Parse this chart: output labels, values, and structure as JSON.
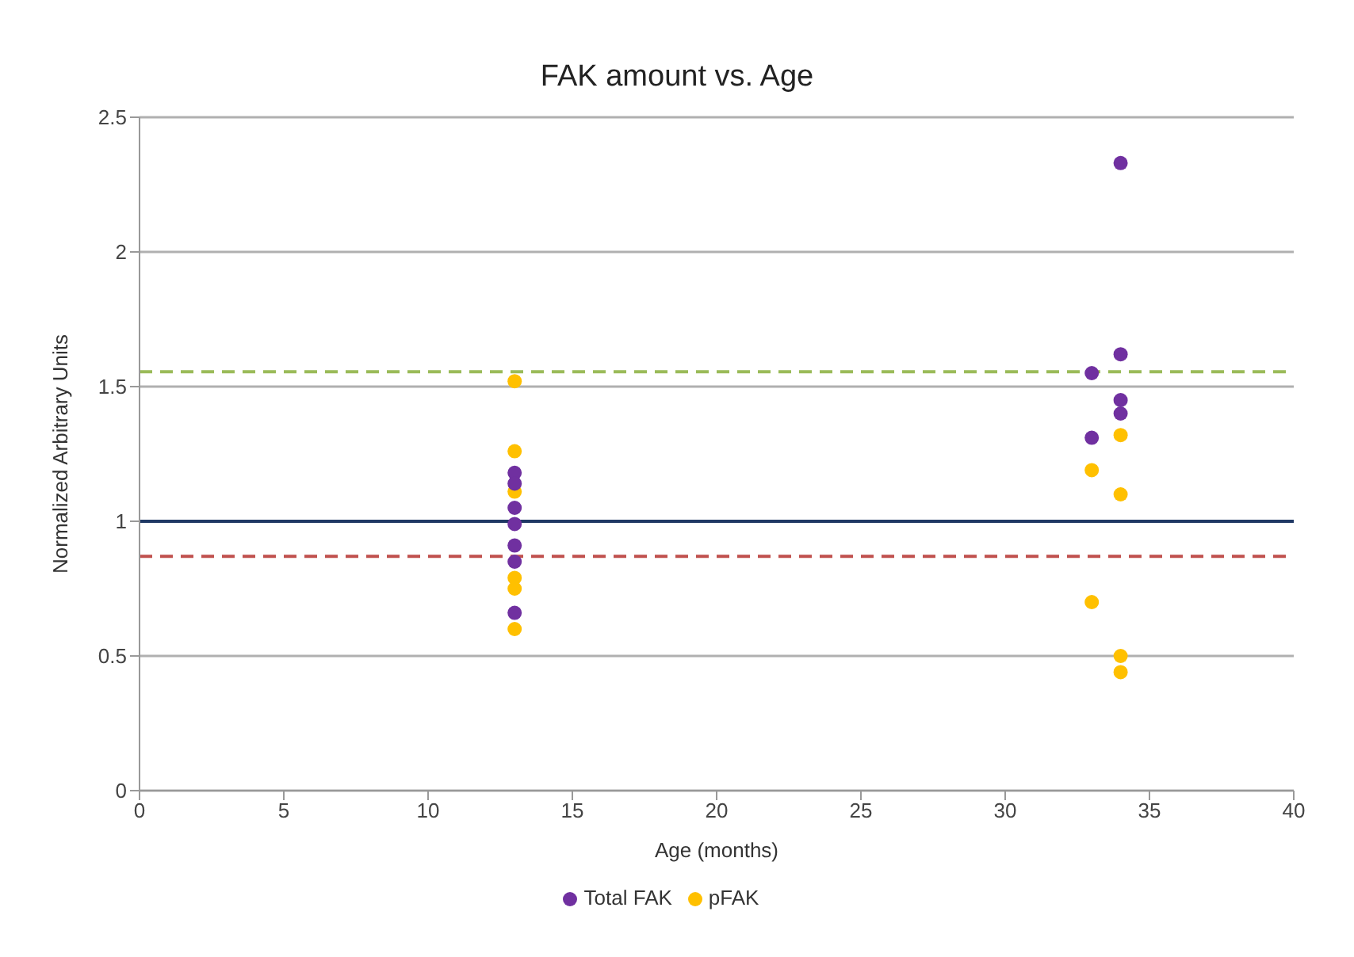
{
  "chart_data": {
    "type": "scatter",
    "title": "FAK amount vs. Age",
    "xlabel": "Age (months)",
    "ylabel": "Normalized Arbitrary Units",
    "xlim": [
      0,
      40
    ],
    "xticks": [
      0,
      5,
      10,
      15,
      20,
      25,
      30,
      35,
      40
    ],
    "ylim": [
      0,
      2.5
    ],
    "yticks": [
      0,
      0.5,
      1,
      1.5,
      2,
      2.5
    ],
    "grid": "y",
    "legend": "bottom",
    "marker": "circle",
    "series": [
      {
        "name": "pFAK",
        "color": "#ffc000",
        "x": [
          13,
          13,
          13,
          13,
          13,
          13,
          33,
          33,
          34,
          34,
          34,
          34
        ],
        "values": [
          1.52,
          1.26,
          1.11,
          0.79,
          0.75,
          0.6,
          1.19,
          0.7,
          1.32,
          1.1,
          0.5,
          0.44
        ]
      },
      {
        "name": "Total FAK",
        "color": "#7030a0",
        "x": [
          13,
          13,
          13,
          13,
          13,
          13,
          13,
          33,
          33,
          34,
          34,
          34,
          34
        ],
        "values": [
          1.18,
          1.14,
          1.05,
          0.99,
          0.91,
          0.85,
          0.66,
          1.55,
          1.31,
          2.33,
          1.62,
          1.45,
          1.4
        ]
      }
    ],
    "ref_lines": [
      {
        "axis": "y",
        "value": 1.555,
        "color": "#9bbb59",
        "line_style": "dashed"
      },
      {
        "axis": "y",
        "value": 1,
        "color": "#1f3864",
        "line_style": "solid"
      },
      {
        "axis": "y",
        "value": 0.87,
        "color": "#c0504d",
        "line_style": "dashed"
      }
    ]
  }
}
